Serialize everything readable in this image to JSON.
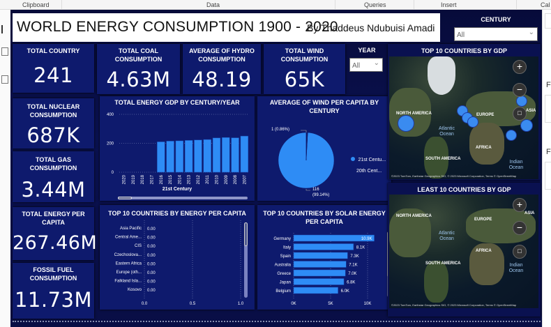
{
  "ribbon": {
    "groups": [
      "Clipboard",
      "Data",
      "Queries",
      "Insert",
      "Cal"
    ]
  },
  "rightpanel": {
    "labels": [
      "F",
      "F"
    ]
  },
  "header": {
    "title": "WORLD ENERGY CONSUMPTION 1900 - 2020",
    "byline": "By Thaddeus Ndubuisi Amadi"
  },
  "century_slicer": {
    "label": "CENTURY",
    "value": "All"
  },
  "year_slicer": {
    "label": "YEAR",
    "value": "All"
  },
  "kpis": {
    "total_country": {
      "label": "TOTAL COUNTRY",
      "value": "241"
    },
    "total_coal": {
      "label": "TOTAL COAL CONSUMPTION",
      "value": "4.63M"
    },
    "avg_hydro": {
      "label": "AVERAGE OF HYDRO CONSUMPTION",
      "value": "48.19"
    },
    "total_wind": {
      "label": "TOTAL WIND CONSUMPTION",
      "value": "65K"
    },
    "total_nuclear": {
      "label": "TOTAL NUCLEAR CONSUMPTION",
      "value": "687K"
    },
    "total_gas": {
      "label": "TOTAL GAS CONSUMPTION",
      "value": "3.44M"
    },
    "energy_per_capita": {
      "label": "TOTAL ENERGY PER CAPITA",
      "value": "267.46M"
    },
    "fossil_fuel": {
      "label": "FOSSIL FUEL CONSUMPTION",
      "value": "11.73M"
    }
  },
  "maps": {
    "top": {
      "title": "TOP 10 COUNTRIES BY GDP"
    },
    "least": {
      "title": "LEAST 10 COUNTRIES BY GDP"
    },
    "labels": {
      "na": "NORTH AMERICA",
      "eu": "EUROPE",
      "asia": "ASIA",
      "africa": "AFRICA",
      "sa": "SOUTH AMERICA",
      "atlantic": "Atlantic Ocean",
      "indian": "Indian Ocean"
    },
    "attribution": "©2023 TomTom, Earthstar Geographics SIO, © 2023 Microsoft Corporation, Terms © OpenStreetMap",
    "zoom_in": "+",
    "zoom_out": "−"
  },
  "chart_data": [
    {
      "type": "bar",
      "title": "TOTAL ENERGY GDP BY CENTURY/YEAR",
      "categories": [
        "2020",
        "2019",
        "2018",
        "2017",
        "2016",
        "2015",
        "2014",
        "2013",
        "2012",
        "2011",
        "2010",
        "2009",
        "2008",
        "2007"
      ],
      "values": [
        0,
        0,
        0,
        0,
        210,
        215,
        217,
        220,
        223,
        226,
        237,
        240,
        238,
        250
      ],
      "xlabel": "21st Century",
      "yticks": [
        "0",
        "200",
        "400"
      ],
      "ylim": [
        0,
        400
      ],
      "color": "#2e8cf5"
    },
    {
      "type": "pie",
      "title": "AVERAGE OF WIND PER CAPITA BY CENTURY",
      "labels": [
        "21st Centu...",
        "20th Cent..."
      ],
      "values": [
        116,
        1
      ],
      "data_labels": [
        "116 (99.14%)",
        "1 (0.86%)"
      ],
      "label_116": "116",
      "pct_116": "(99.14%)",
      "label_1": "1 (0.86%)",
      "colors": [
        "#2e8cf5",
        "#0e1a6d"
      ],
      "legend": "right"
    },
    {
      "type": "bar",
      "orientation": "horizontal",
      "title": "TOP 10 COUNTRIES BY ENERGY PER CAPITA",
      "categories": [
        "Asia Pacific",
        "Central Ame...",
        "CIS",
        "Czechoslova...",
        "Eastern Africa",
        "Europe (oth...",
        "Falkland Isla...",
        "Kosovo"
      ],
      "values": [
        0,
        0,
        0,
        0,
        0,
        0,
        0,
        0
      ],
      "value_labels": [
        "0.00",
        "0.00",
        "0.00",
        "0.00",
        "0.00",
        "0.00",
        "0.00",
        "0.00"
      ],
      "xticks": [
        "0.0",
        "0.5",
        "1.0"
      ],
      "xlim": [
        0,
        1
      ]
    },
    {
      "type": "bar",
      "orientation": "horizontal",
      "title": "TOP 10 COUNTRIES BY SOLAR ENERGY PER CAPITA",
      "categories": [
        "Germany",
        "Italy",
        "Spain",
        "Australia",
        "Greece",
        "Japan",
        "Belgium"
      ],
      "values": [
        10900,
        8100,
        7300,
        7100,
        7000,
        6800,
        6000
      ],
      "value_labels": [
        "10.9K",
        "8.1K",
        "7.3K",
        "7.1K",
        "7.0K",
        "6.8K",
        "6.0K"
      ],
      "xticks": [
        "0K",
        "5K",
        "10K"
      ],
      "xlim": [
        0,
        11000
      ],
      "color": "#2e8cf5"
    }
  ]
}
